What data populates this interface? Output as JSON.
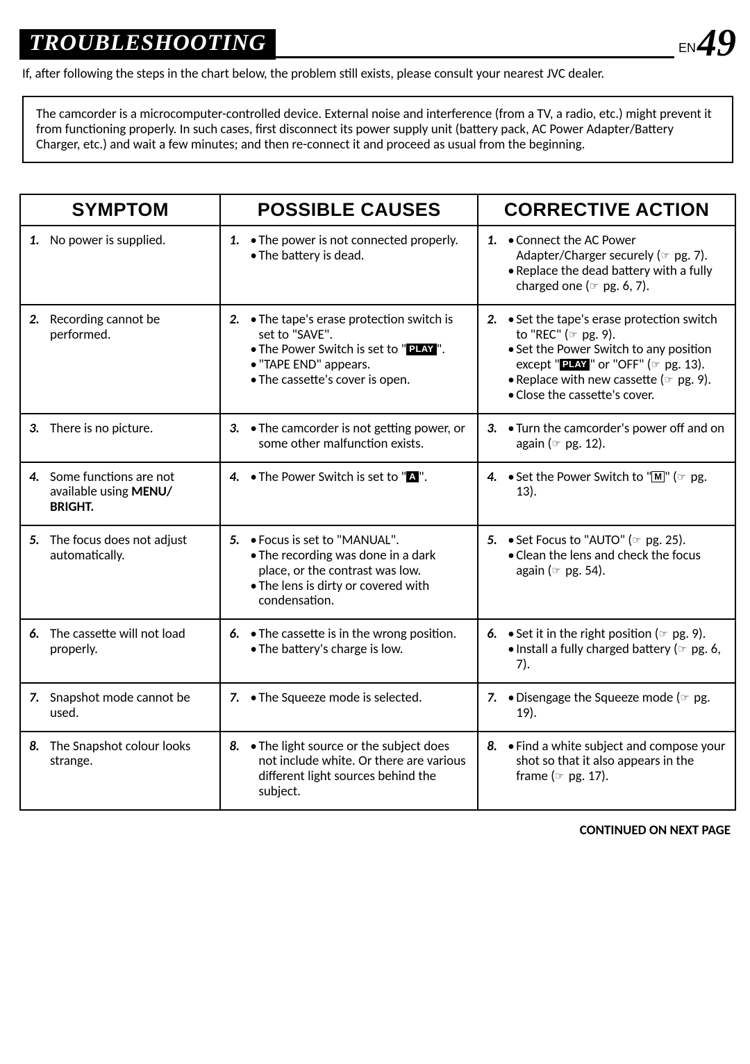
{
  "header": {
    "title": "TROUBLESHOOTING",
    "lang": "EN",
    "page": "49"
  },
  "intro": "If, after following the steps in the chart below, the problem still exists, please consult your nearest JVC dealer.",
  "note": "The camcorder is a microcomputer-controlled device. External noise and interference (from a TV, a radio, etc.) might prevent it from functioning properly. In such cases, first disconnect its power supply unit (battery pack, AC Power Adapter/Battery Charger, etc.) and wait a few minutes; and then re-connect it and proceed as usual from the beginning.",
  "columns": {
    "symptom": "SYMPTOM",
    "causes": "POSSIBLE CAUSES",
    "action": "CORRECTIVE ACTION"
  },
  "rows": [
    {
      "n": "1.",
      "symptom": "No power is supplied.",
      "causes": [
        "The power is not connected properly.",
        "The battery is dead."
      ],
      "actions": [
        "Connect the AC Power Adapter/Charger securely (☞ pg. 7).",
        "Replace the dead battery with a fully charged one (☞ pg. 6, 7)."
      ]
    },
    {
      "n": "2.",
      "symptom": "Recording cannot be performed.",
      "causes": [
        "The tape's erase protection switch is set to \"SAVE\".",
        "The Power Switch is set to \"[PLAY]\".",
        "\"TAPE END\" appears.",
        "The cassette's cover is open."
      ],
      "actions": [
        "Set the tape's erase protection switch to \"REC\" (☞ pg. 9).",
        "Set the Power Switch to any position except \"[PLAY]\" or \"OFF\" (☞ pg. 13).",
        "Replace with new cassette (☞ pg. 9).",
        "Close the cassette's cover."
      ]
    },
    {
      "n": "3.",
      "symptom": "There is no picture.",
      "causes": [
        "The camcorder is not getting power, or some other malfunction exists."
      ],
      "actions": [
        "Turn the camcorder's power off and on again (☞ pg. 12)."
      ]
    },
    {
      "n": "4.",
      "symptom": "Some functions are not available using MENU/BRIGHT.",
      "causes": [
        "The Power Switch is set to \"[A]\"."
      ],
      "actions": [
        "Set the Power Switch to \"[M]\" (☞ pg. 13)."
      ]
    },
    {
      "n": "5.",
      "symptom": "The focus does not adjust automatically.",
      "causes": [
        "Focus is set to \"MANUAL\".",
        "The recording was done in a dark place, or the contrast was low.",
        "The lens is dirty or covered with condensation."
      ],
      "actions": [
        "Set Focus to \"AUTO\" (☞ pg. 25).",
        "Clean the lens and check the focus again (☞ pg. 54)."
      ]
    },
    {
      "n": "6.",
      "symptom": "The cassette will not load properly.",
      "causes": [
        "The cassette is in the wrong position.",
        "The battery's charge is low."
      ],
      "actions": [
        "Set it in the right position (☞ pg. 9).",
        "Install a fully charged battery (☞ pg. 6, 7)."
      ]
    },
    {
      "n": "7.",
      "symptom": "Snapshot mode cannot be used.",
      "causes": [
        "The Squeeze mode is selected."
      ],
      "actions": [
        "Disengage the Squeeze mode (☞ pg. 19)."
      ]
    },
    {
      "n": "8.",
      "symptom": "The Snapshot colour looks strange.",
      "causes": [
        "The light source or the subject does not include white. Or there are various different light sources behind the subject."
      ],
      "actions": [
        "Find a white subject and compose your shot so that it also appears in the frame (☞ pg. 17)."
      ]
    }
  ],
  "footer": "CONTINUED ON NEXT PAGE"
}
